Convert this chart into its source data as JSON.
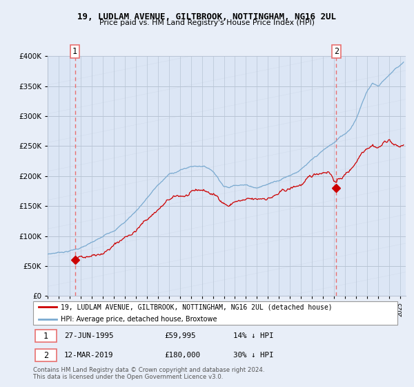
{
  "title": "19, LUDLAM AVENUE, GILTBROOK, NOTTINGHAM, NG16 2UL",
  "subtitle": "Price paid vs. HM Land Registry's House Price Index (HPI)",
  "bg_color": "#e8eef8",
  "plot_bg": "#dce6f5",
  "grid_color": "#b8c4d4",
  "ylabel_color": "#333333",
  "sale1_x": 1995.48,
  "sale1_y": 59995,
  "sale2_x": 2019.19,
  "sale2_y": 180000,
  "legend_line1": "19, LUDLAM AVENUE, GILTBROOK, NOTTINGHAM, NG16 2UL (detached house)",
  "legend_line2": "HPI: Average price, detached house, Broxtowe",
  "footer": "Contains HM Land Registry data © Crown copyright and database right 2024.\nThis data is licensed under the Open Government Licence v3.0.",
  "ylim": [
    0,
    400000
  ],
  "xlim": [
    1993.0,
    2025.5
  ],
  "sale_color": "#cc0000",
  "hpi_color": "#7aaad0",
  "dashed_line_color": "#e87070"
}
